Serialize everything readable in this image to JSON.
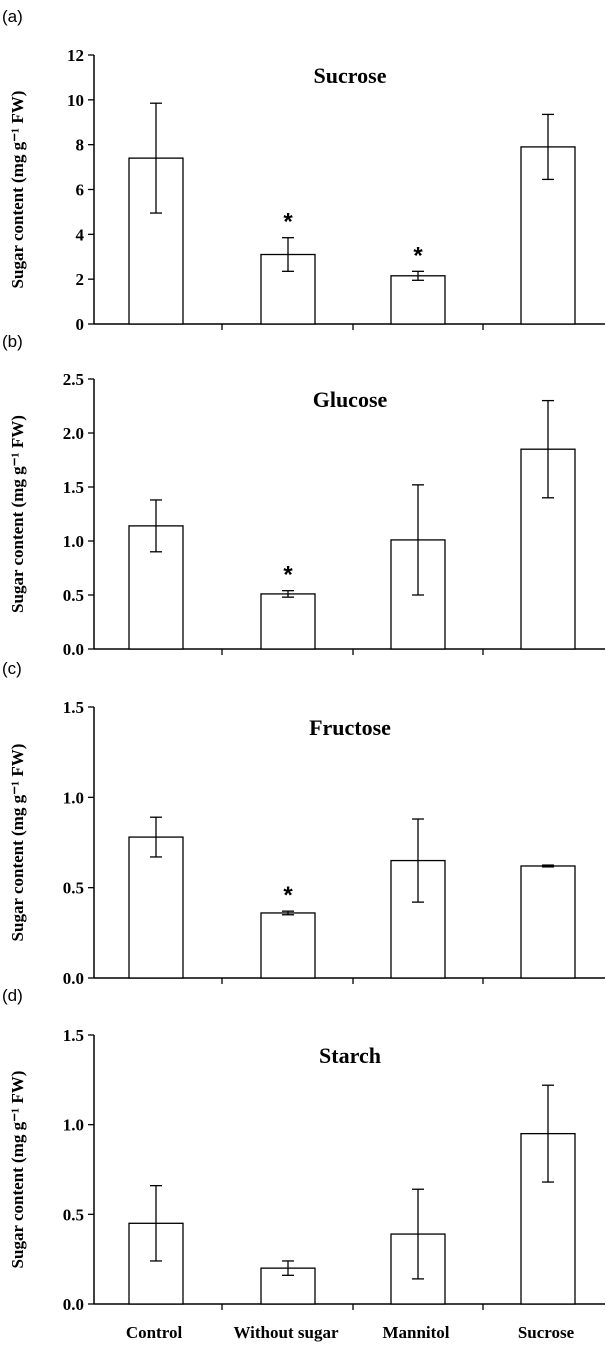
{
  "chart_data": [
    {
      "type": "bar",
      "panel": "(a)",
      "title": "Sucrose",
      "ylabel": "Sugar content (mg g⁻¹ FW)",
      "ylim": [
        0,
        12
      ],
      "yticks": [
        0,
        2,
        4,
        6,
        8,
        10,
        12
      ],
      "ytick_labels": [
        "0",
        "2",
        "4",
        "6",
        "8",
        "10",
        "12"
      ],
      "categories": [
        "Control",
        "Without sugar",
        "Mannitol",
        "Sucrose"
      ],
      "values": [
        7.4,
        3.1,
        2.15,
        7.9
      ],
      "errors": [
        2.45,
        0.75,
        0.2,
        1.45
      ],
      "significant": [
        "",
        "*",
        "*",
        ""
      ],
      "grid": false,
      "legend": "none"
    },
    {
      "type": "bar",
      "panel": "(b)",
      "title": "Glucose",
      "ylabel": "Sugar content (mg g⁻¹ FW)",
      "ylim": [
        0,
        2.5
      ],
      "yticks": [
        0,
        0.5,
        1.0,
        1.5,
        2.0,
        2.5
      ],
      "ytick_labels": [
        "0.0",
        "0.5",
        "1.0",
        "1.5",
        "2.0",
        "2.5"
      ],
      "categories": [
        "Control",
        "Without sugar",
        "Mannitol",
        "Sucrose"
      ],
      "values": [
        1.14,
        0.51,
        1.01,
        1.85
      ],
      "errors": [
        0.24,
        0.03,
        0.51,
        0.45
      ],
      "significant": [
        "",
        "*",
        "",
        ""
      ],
      "grid": false,
      "legend": "none"
    },
    {
      "type": "bar",
      "panel": "(c)",
      "title": "Fructose",
      "ylabel": "Sugar content (mg g⁻¹ FW)",
      "ylim": [
        0,
        1.5
      ],
      "yticks": [
        0,
        0.5,
        1.0,
        1.5
      ],
      "ytick_labels": [
        "0.0",
        "0.5",
        "1.0",
        "1.5"
      ],
      "categories": [
        "Control",
        "Without sugar",
        "Mannitol",
        "Sucrose"
      ],
      "values": [
        0.78,
        0.36,
        0.65,
        0.62
      ],
      "errors": [
        0.11,
        0.01,
        0.23,
        0.005
      ],
      "significant": [
        "",
        "*",
        "",
        ""
      ],
      "grid": false,
      "legend": "none"
    },
    {
      "type": "bar",
      "panel": "(d)",
      "title": "Starch",
      "ylabel": "Sugar content (mg g⁻¹ FW)",
      "ylim": [
        0,
        1.5
      ],
      "yticks": [
        0,
        0.5,
        1.0,
        1.5
      ],
      "ytick_labels": [
        "0.0",
        "0.5",
        "1.0",
        "1.5"
      ],
      "categories": [
        "Control",
        "Without sugar",
        "Mannitol",
        "Sucrose"
      ],
      "values": [
        0.45,
        0.2,
        0.39,
        0.95
      ],
      "errors": [
        0.21,
        0.04,
        0.25,
        0.27
      ],
      "significant": [
        "",
        "",
        "",
        ""
      ],
      "grid": false,
      "legend": "none",
      "show_category_labels": true
    }
  ]
}
